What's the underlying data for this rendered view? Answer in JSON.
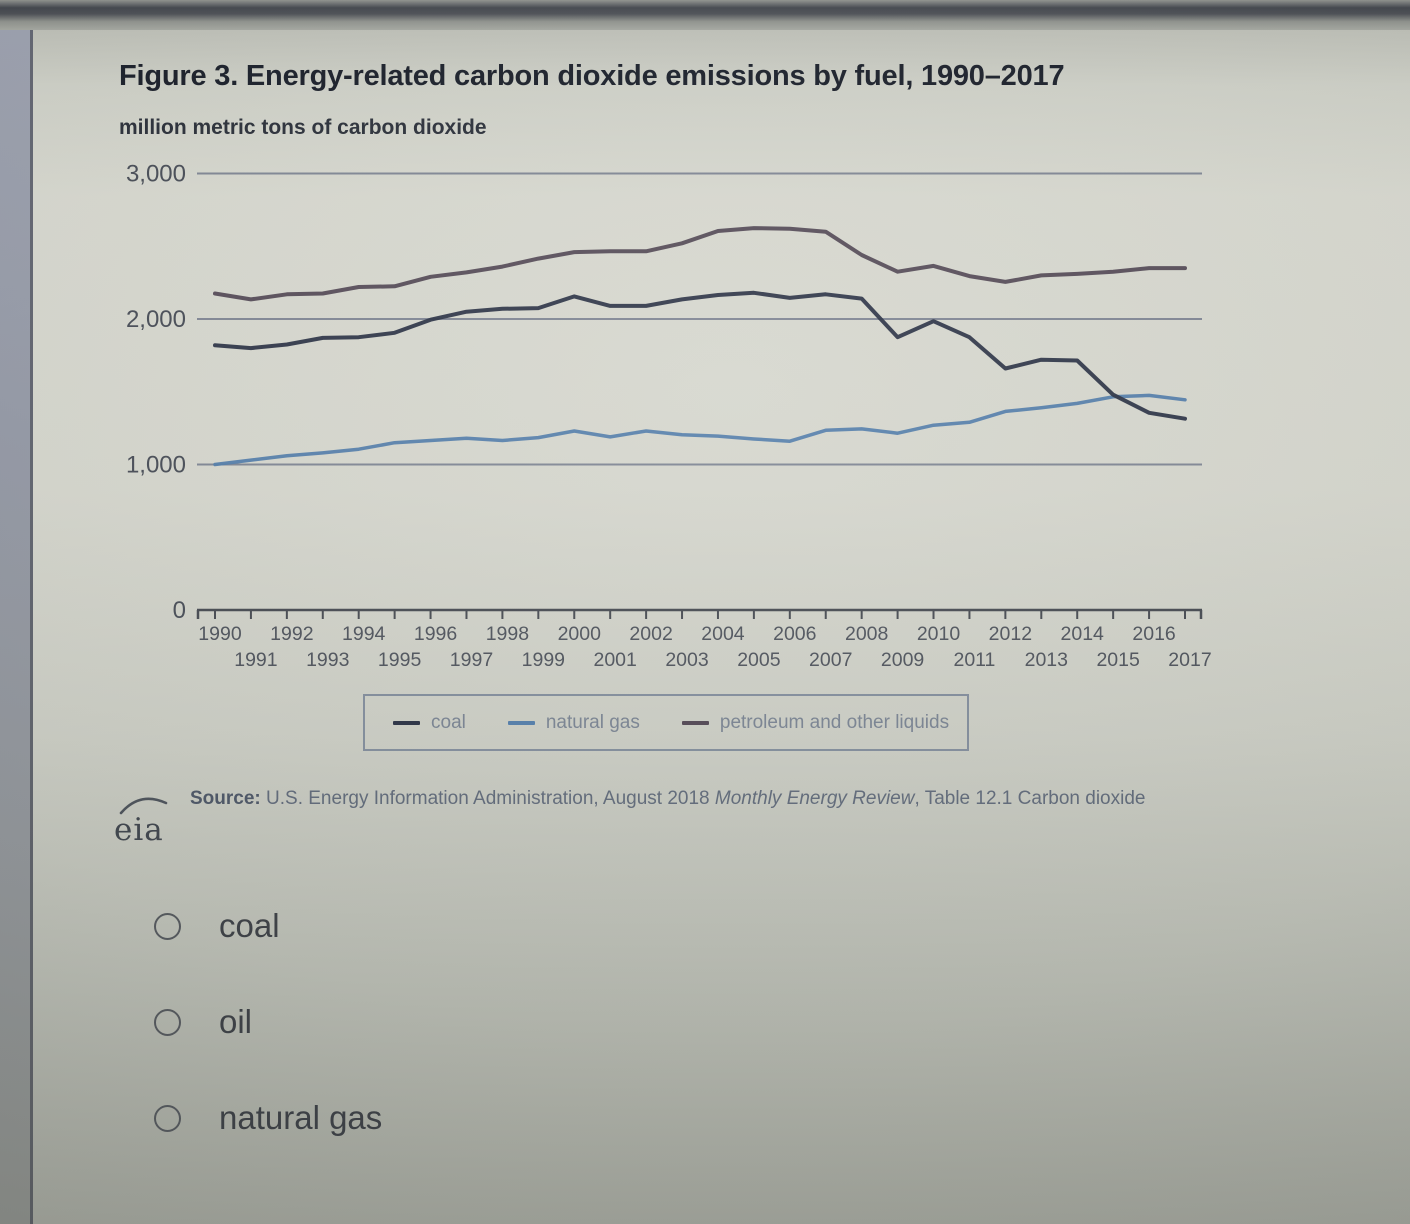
{
  "page": {
    "title": "Figure 3. Energy-related carbon dioxide emissions by fuel, 1990–2017",
    "subtitle": "million metric tons of carbon dioxide"
  },
  "chart_data": {
    "type": "line",
    "title": "Figure 3. Energy-related carbon dioxide emissions by fuel, 1990–2017",
    "ylabel": "million metric tons of carbon dioxide",
    "xlabel": "",
    "grid": "horizontal",
    "legend_position": "bottom",
    "ylim": [
      0,
      3000
    ],
    "yticks": [
      0,
      1000,
      2000,
      3000
    ],
    "ytick_labels": [
      "0",
      "1,000",
      "2,000",
      "3,000"
    ],
    "x": [
      1990,
      1991,
      1992,
      1993,
      1994,
      1995,
      1996,
      1997,
      1998,
      1999,
      2000,
      2001,
      2002,
      2003,
      2004,
      2005,
      2006,
      2007,
      2008,
      2009,
      2010,
      2011,
      2012,
      2013,
      2014,
      2015,
      2016,
      2017
    ],
    "series": [
      {
        "name": "coal",
        "color": "#262d40",
        "values": [
          1820,
          1800,
          1825,
          1870,
          1875,
          1905,
          1995,
          2050,
          2070,
          2075,
          2155,
          2090,
          2090,
          2135,
          2165,
          2180,
          2145,
          2170,
          2140,
          1875,
          1985,
          1875,
          1660,
          1720,
          1715,
          1480,
          1355,
          1315
        ]
      },
      {
        "name": "natural gas",
        "color": "#4f7aa8",
        "values": [
          1000,
          1030,
          1060,
          1080,
          1105,
          1150,
          1165,
          1180,
          1165,
          1185,
          1230,
          1190,
          1230,
          1205,
          1195,
          1175,
          1160,
          1235,
          1245,
          1215,
          1270,
          1290,
          1365,
          1390,
          1420,
          1465,
          1475,
          1445
        ]
      },
      {
        "name": "petroleum and other liquids",
        "color": "#4e4350",
        "values": [
          2175,
          2135,
          2170,
          2175,
          2220,
          2225,
          2290,
          2320,
          2360,
          2415,
          2460,
          2465,
          2465,
          2520,
          2605,
          2625,
          2620,
          2600,
          2440,
          2325,
          2365,
          2295,
          2255,
          2300,
          2310,
          2325,
          2350,
          2350
        ]
      }
    ],
    "axis_color": "#43474e",
    "gridline_color": "#6f7688",
    "tick_label_color": "#4b5059"
  },
  "source": {
    "logo_text": "eia",
    "label": "Source:",
    "pre": " U.S. Energy Information Administration, August 2018 ",
    "italic": "Monthly Energy Review",
    "post": ", Table 12.1 Carbon dioxide"
  },
  "question": {
    "options": [
      {
        "label": "coal"
      },
      {
        "label": "oil"
      },
      {
        "label": "natural gas"
      }
    ]
  }
}
